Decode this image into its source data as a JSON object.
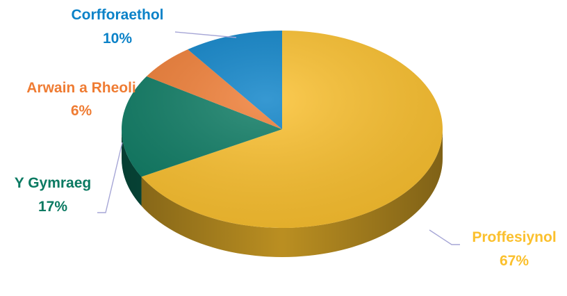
{
  "chart_data": {
    "type": "pie",
    "title": "",
    "legend": "none",
    "slices": [
      {
        "name": "Proffesiynol",
        "value": 67,
        "label": "67%",
        "color": "#FBC02D"
      },
      {
        "name": "Y Gymraeg",
        "value": 17,
        "label": "17%",
        "color": "#0B7A62"
      },
      {
        "name": "Arwain a Rheoli",
        "value": 6,
        "label": "6%",
        "color": "#EF7C33"
      },
      {
        "name": "Corfforaethol",
        "value": 10,
        "label": "10%",
        "color": "#0B82C8"
      }
    ]
  }
}
